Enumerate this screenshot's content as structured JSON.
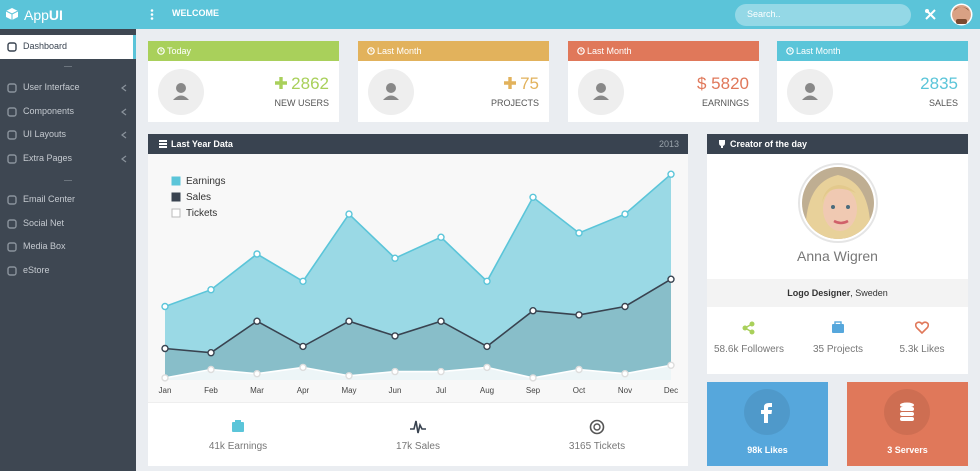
{
  "header": {
    "brand": [
      "App",
      "UI"
    ],
    "welcome": "WELCOME",
    "search_placeholder": "Search.."
  },
  "sidebar": {
    "items": [
      "Dashboard",
      "User Interface",
      "Components",
      "UI Layouts",
      "Extra Pages",
      "Email Center",
      "Social Net",
      "Media Box",
      "eStore"
    ]
  },
  "stats": [
    {
      "period": "Today",
      "value": "2862",
      "label": "NEW USERS",
      "color": "#a9d05b"
    },
    {
      "period": "Last Month",
      "value": "75",
      "label": "PROJECTS",
      "color": "#e2b25c"
    },
    {
      "period": "Last Month",
      "value": "$ 5820",
      "label": "EARNINGS",
      "color": "#e0785a"
    },
    {
      "period": "Last Month",
      "value": "2835",
      "label": "SALES",
      "color": "#5bc5d9"
    }
  ],
  "chart_data": {
    "type": "area",
    "title": "Last Year Data",
    "subtitle": "2013",
    "categories": [
      "Jan",
      "Feb",
      "Mar",
      "Apr",
      "May",
      "Jun",
      "Jul",
      "Aug",
      "Sep",
      "Oct",
      "Nov",
      "Dec"
    ],
    "series": [
      {
        "name": "Earnings",
        "color": "#5bc5d9",
        "values": [
          35,
          43,
          60,
          47,
          79,
          58,
          68,
          47,
          87,
          70,
          79,
          98
        ]
      },
      {
        "name": "Sales",
        "color": "#394350",
        "values": [
          15,
          13,
          28,
          16,
          28,
          21,
          28,
          16,
          33,
          31,
          35,
          48
        ]
      },
      {
        "name": "Tickets",
        "color": "#ffffff",
        "values": [
          1,
          5,
          3,
          6,
          2,
          4,
          4,
          6,
          1,
          5,
          3,
          7
        ]
      }
    ],
    "ylim": [
      0,
      100
    ],
    "legend": "top-left",
    "grid": false
  },
  "chart_footer": [
    "41k Earnings",
    "17k Sales",
    "3165 Tickets"
  ],
  "creator": {
    "title": "Creator of the day",
    "name": "Anna Wigren",
    "role": "Logo Designer",
    "location": ", Sweden",
    "stats": [
      "58.6k Followers",
      "35 Projects",
      "5.3k Likes"
    ]
  },
  "tiles": [
    {
      "label": "98k Likes",
      "color": "#56a7dc"
    },
    {
      "label": "3 Servers",
      "color": "#e0785a"
    }
  ]
}
